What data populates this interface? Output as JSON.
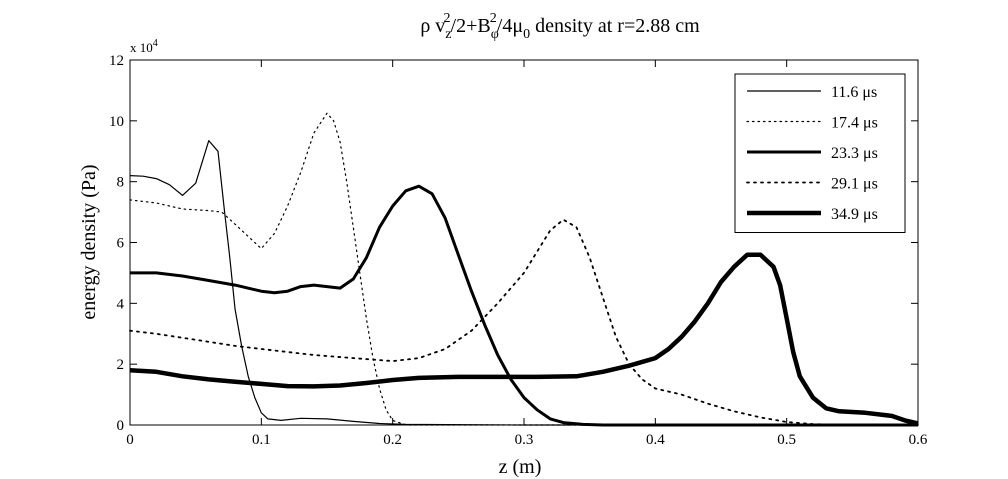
{
  "chart_data": {
    "type": "line",
    "title": "ρ v_z²/2+B_φ²/4μ_0 density at r=2.88 cm",
    "title_parts": {
      "rho": "ρ v",
      "sub_z": "z",
      "sup_2a": "2",
      "mid": "/2+B",
      "sub_phi": "φ",
      "sup_2b": "2",
      "tail": "/4μ",
      "sub_0": "0",
      "end": " density at r=2.88 cm"
    },
    "xlabel": "z (m)",
    "ylabel": "energy density (Pa)",
    "y_multiplier": "x 10",
    "y_multiplier_exp": "4",
    "xlim": [
      0,
      0.6
    ],
    "ylim": [
      0,
      12
    ],
    "x_ticks": [
      0,
      0.1,
      0.2,
      0.3,
      0.4,
      0.5,
      0.6
    ],
    "x_tick_labels": [
      "0",
      "0.1",
      "0.2",
      "0.3",
      "0.4",
      "0.5",
      "0.6"
    ],
    "y_ticks": [
      0,
      2,
      4,
      6,
      8,
      10,
      12
    ],
    "y_tick_labels": [
      "0",
      "2",
      "4",
      "6",
      "8",
      "10",
      "12"
    ],
    "grid": false,
    "legend_position": "top-right",
    "series": [
      {
        "name": "11.6 μs",
        "style": "solid",
        "width": 1.2,
        "points": [
          [
            0,
            8.2
          ],
          [
            0.01,
            8.18
          ],
          [
            0.02,
            8.1
          ],
          [
            0.03,
            7.9
          ],
          [
            0.04,
            7.55
          ],
          [
            0.05,
            7.95
          ],
          [
            0.06,
            9.35
          ],
          [
            0.067,
            9.0
          ],
          [
            0.072,
            7.0
          ],
          [
            0.076,
            5.5
          ],
          [
            0.08,
            3.8
          ],
          [
            0.085,
            2.6
          ],
          [
            0.09,
            1.6
          ],
          [
            0.095,
            0.9
          ],
          [
            0.1,
            0.4
          ],
          [
            0.105,
            0.2
          ],
          [
            0.115,
            0.15
          ],
          [
            0.13,
            0.22
          ],
          [
            0.15,
            0.2
          ],
          [
            0.17,
            0.12
          ],
          [
            0.19,
            0.05
          ],
          [
            0.21,
            0.02
          ],
          [
            0.3,
            0.0
          ],
          [
            0.6,
            0.0
          ]
        ]
      },
      {
        "name": "17.4 μs",
        "style": "dotted",
        "width": 1.2,
        "points": [
          [
            0,
            7.4
          ],
          [
            0.02,
            7.3
          ],
          [
            0.04,
            7.1
          ],
          [
            0.06,
            7.05
          ],
          [
            0.07,
            7.0
          ],
          [
            0.085,
            6.4
          ],
          [
            0.1,
            5.8
          ],
          [
            0.11,
            6.3
          ],
          [
            0.12,
            7.2
          ],
          [
            0.13,
            8.3
          ],
          [
            0.14,
            9.6
          ],
          [
            0.15,
            10.25
          ],
          [
            0.155,
            10.0
          ],
          [
            0.16,
            9.3
          ],
          [
            0.165,
            8.0
          ],
          [
            0.17,
            6.5
          ],
          [
            0.175,
            5.0
          ],
          [
            0.18,
            3.5
          ],
          [
            0.185,
            2.2
          ],
          [
            0.19,
            1.2
          ],
          [
            0.195,
            0.5
          ],
          [
            0.2,
            0.15
          ],
          [
            0.21,
            0.0
          ],
          [
            0.6,
            0.0
          ]
        ]
      },
      {
        "name": "23.3 μs",
        "style": "solid",
        "width": 3,
        "points": [
          [
            0,
            5.0
          ],
          [
            0.02,
            5.0
          ],
          [
            0.04,
            4.9
          ],
          [
            0.06,
            4.75
          ],
          [
            0.08,
            4.6
          ],
          [
            0.1,
            4.4
          ],
          [
            0.11,
            4.35
          ],
          [
            0.12,
            4.4
          ],
          [
            0.13,
            4.55
          ],
          [
            0.14,
            4.6
          ],
          [
            0.15,
            4.55
          ],
          [
            0.16,
            4.5
          ],
          [
            0.17,
            4.8
          ],
          [
            0.18,
            5.5
          ],
          [
            0.19,
            6.5
          ],
          [
            0.2,
            7.2
          ],
          [
            0.21,
            7.7
          ],
          [
            0.22,
            7.85
          ],
          [
            0.23,
            7.6
          ],
          [
            0.24,
            6.8
          ],
          [
            0.25,
            5.6
          ],
          [
            0.26,
            4.4
          ],
          [
            0.27,
            3.3
          ],
          [
            0.28,
            2.3
          ],
          [
            0.29,
            1.5
          ],
          [
            0.3,
            0.9
          ],
          [
            0.31,
            0.5
          ],
          [
            0.32,
            0.2
          ],
          [
            0.33,
            0.08
          ],
          [
            0.345,
            0.02
          ],
          [
            0.36,
            0.0
          ],
          [
            0.6,
            0.0
          ]
        ]
      },
      {
        "name": "29.1 μs",
        "style": "dotted",
        "width": 1.8,
        "points": [
          [
            0,
            3.1
          ],
          [
            0.02,
            3.0
          ],
          [
            0.05,
            2.8
          ],
          [
            0.08,
            2.6
          ],
          [
            0.11,
            2.45
          ],
          [
            0.14,
            2.3
          ],
          [
            0.17,
            2.2
          ],
          [
            0.2,
            2.1
          ],
          [
            0.22,
            2.2
          ],
          [
            0.24,
            2.5
          ],
          [
            0.26,
            3.1
          ],
          [
            0.28,
            4.0
          ],
          [
            0.3,
            5.0
          ],
          [
            0.31,
            5.7
          ],
          [
            0.32,
            6.4
          ],
          [
            0.33,
            6.75
          ],
          [
            0.34,
            6.5
          ],
          [
            0.35,
            5.5
          ],
          [
            0.36,
            4.2
          ],
          [
            0.37,
            2.9
          ],
          [
            0.38,
            2.0
          ],
          [
            0.39,
            1.5
          ],
          [
            0.4,
            1.2
          ],
          [
            0.42,
            1.0
          ],
          [
            0.44,
            0.7
          ],
          [
            0.46,
            0.45
          ],
          [
            0.48,
            0.25
          ],
          [
            0.5,
            0.1
          ],
          [
            0.52,
            0.03
          ],
          [
            0.55,
            0.0
          ],
          [
            0.6,
            0.0
          ]
        ]
      },
      {
        "name": "34.9 μs",
        "style": "solid",
        "width": 4.5,
        "points": [
          [
            0,
            1.8
          ],
          [
            0.02,
            1.75
          ],
          [
            0.04,
            1.6
          ],
          [
            0.06,
            1.5
          ],
          [
            0.08,
            1.42
          ],
          [
            0.1,
            1.35
          ],
          [
            0.12,
            1.28
          ],
          [
            0.14,
            1.27
          ],
          [
            0.16,
            1.3
          ],
          [
            0.18,
            1.38
          ],
          [
            0.2,
            1.48
          ],
          [
            0.22,
            1.55
          ],
          [
            0.25,
            1.58
          ],
          [
            0.28,
            1.58
          ],
          [
            0.31,
            1.58
          ],
          [
            0.34,
            1.6
          ],
          [
            0.36,
            1.75
          ],
          [
            0.38,
            1.95
          ],
          [
            0.4,
            2.2
          ],
          [
            0.41,
            2.5
          ],
          [
            0.42,
            2.9
          ],
          [
            0.43,
            3.4
          ],
          [
            0.44,
            4.0
          ],
          [
            0.45,
            4.7
          ],
          [
            0.46,
            5.2
          ],
          [
            0.47,
            5.6
          ],
          [
            0.48,
            5.6
          ],
          [
            0.49,
            5.2
          ],
          [
            0.495,
            4.6
          ],
          [
            0.5,
            3.5
          ],
          [
            0.505,
            2.4
          ],
          [
            0.51,
            1.6
          ],
          [
            0.52,
            0.9
          ],
          [
            0.53,
            0.55
          ],
          [
            0.54,
            0.45
          ],
          [
            0.56,
            0.4
          ],
          [
            0.58,
            0.3
          ],
          [
            0.59,
            0.15
          ],
          [
            0.6,
            0.05
          ]
        ]
      }
    ]
  }
}
